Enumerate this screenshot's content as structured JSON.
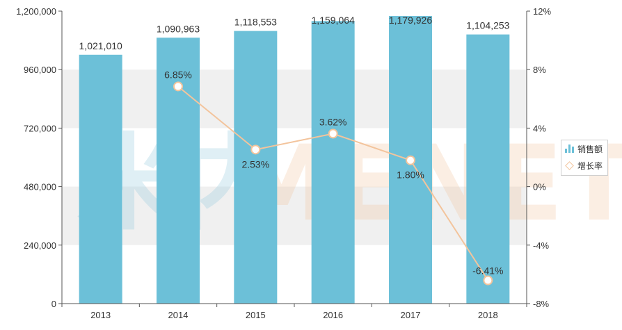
{
  "chart_data": {
    "type": "bar+line",
    "categories": [
      "2013",
      "2014",
      "2015",
      "2016",
      "2017",
      "2018"
    ],
    "series": [
      {
        "name": "销售额",
        "type": "bar",
        "axis": "left",
        "values": [
          1021010,
          1090963,
          1118553,
          1159064,
          1179926,
          1104253
        ],
        "labels": [
          "1,021,010",
          "1,090,963",
          "1,118,553",
          "1,159,064",
          "1,179,926",
          "1,104,253"
        ]
      },
      {
        "name": "增长率",
        "type": "line",
        "axis": "right",
        "values": [
          null,
          6.85,
          2.53,
          3.62,
          1.8,
          -6.41
        ],
        "labels": [
          "",
          "6.85%",
          "2.53%",
          "3.62%",
          "1.80%",
          "-6.41%"
        ]
      }
    ],
    "y_left": {
      "min": 0,
      "max": 1200000,
      "ticks": [
        "0",
        "240,000",
        "480,000",
        "720,000",
        "960,000",
        "1,200,000"
      ]
    },
    "y_right": {
      "min": -8,
      "max": 12,
      "ticks": [
        "-8%",
        "-4%",
        "0%",
        "4%",
        "8%",
        "12%"
      ]
    },
    "grid": true,
    "legend": "right"
  },
  "watermark": {
    "left": "米内",
    "right": "MENET"
  },
  "colors": {
    "bar": "#6cc0d8",
    "line": "#f3c49c",
    "band": "#f0f0f0",
    "axis": "#555555"
  }
}
